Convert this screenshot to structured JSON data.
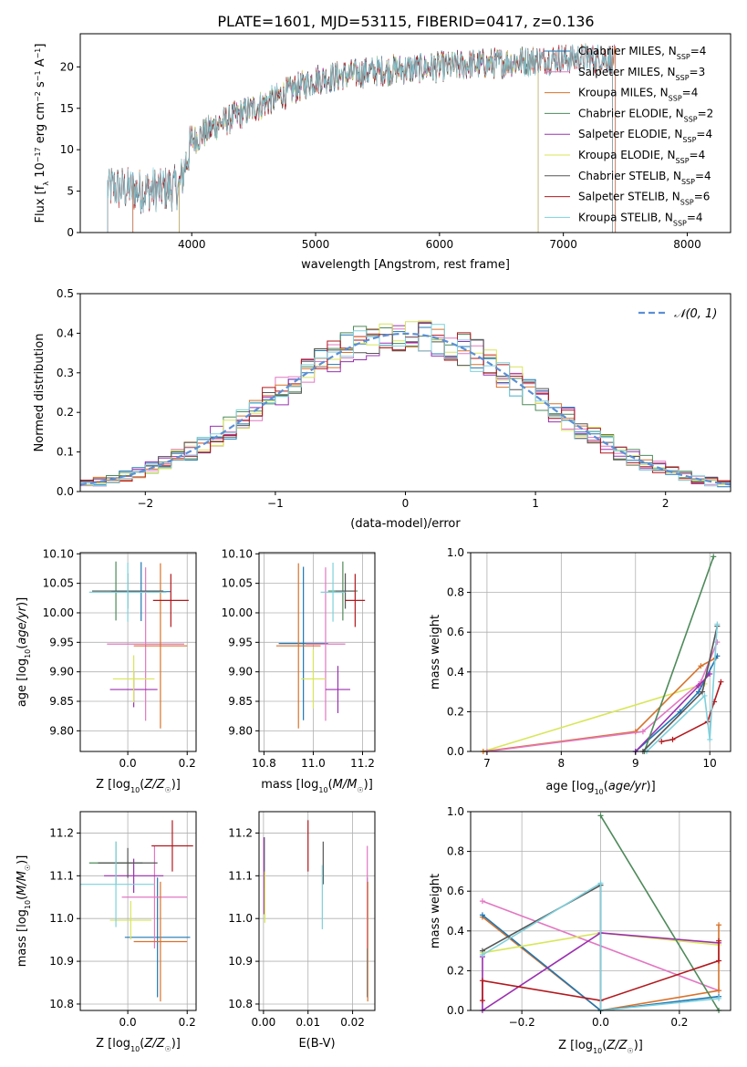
{
  "title": "PLATE=1601, MJD=53115, FIBERID=0417, z=0.136",
  "colors": {
    "Chabrier MILES": "#1f77b4",
    "Salpeter MILES": "#e377c2",
    "Kroupa MILES": "#d9722a",
    "Chabrier ELODIE": "#4d8a5a",
    "Salpeter ELODIE": "#9b30b0",
    "Kroupa ELODIE": "#d8e65a",
    "Chabrier STELIB": "#555555",
    "Salpeter STELIB": "#b2191e",
    "Kroupa STELIB": "#7fd0dc",
    "gauss": "#5b8fd6",
    "grid": "#b0b0b0"
  },
  "chart_data": [
    {
      "id": "spectrum",
      "type": "line",
      "xlabel": "wavelength [Angstrom, rest frame]",
      "ylabel": "Flux [f_λ 10^-17 erg cm^-2 s^-1 A^-1]",
      "xlim": [
        3100,
        8350
      ],
      "ylim": [
        0,
        24
      ],
      "xticks": [
        4000,
        5000,
        6000,
        7000,
        8000
      ],
      "yticks": [
        0,
        5,
        10,
        15,
        20
      ],
      "legend_position": "top-right",
      "legend": [
        {
          "model": "Chabrier MILES",
          "nssp": "4"
        },
        {
          "model": "Salpeter MILES",
          "nssp": "3"
        },
        {
          "model": "Kroupa MILES",
          "nssp": "4"
        },
        {
          "model": "Chabrier ELODIE",
          "nssp": "2"
        },
        {
          "model": "Salpeter ELODIE",
          "nssp": "4"
        },
        {
          "model": "Kroupa ELODIE",
          "nssp": "4"
        },
        {
          "model": "Chabrier STELIB",
          "nssp": "4"
        },
        {
          "model": "Salpeter STELIB",
          "nssp": "6"
        },
        {
          "model": "Kroupa STELIB",
          "nssp": "4"
        }
      ],
      "continuum": [
        [
          3320,
          5.5
        ],
        [
          3600,
          5
        ],
        [
          3900,
          5.5
        ],
        [
          4000,
          11
        ],
        [
          4200,
          13
        ],
        [
          4500,
          15
        ],
        [
          5000,
          18.5
        ],
        [
          5500,
          19.5
        ],
        [
          6000,
          20
        ],
        [
          6500,
          20.5
        ],
        [
          7000,
          21
        ],
        [
          7400,
          21
        ]
      ],
      "model_ranges": [
        {
          "model": "Chabrier MILES",
          "x": [
            3525,
            7420
          ]
        },
        {
          "model": "Salpeter MILES",
          "x": [
            3525,
            7420
          ]
        },
        {
          "model": "Kroupa MILES",
          "x": [
            3525,
            7420
          ]
        },
        {
          "model": "Chabrier ELODIE",
          "x": [
            3895,
            6800
          ]
        },
        {
          "model": "Salpeter ELODIE",
          "x": [
            3895,
            6800
          ]
        },
        {
          "model": "Kroupa ELODIE",
          "x": [
            3895,
            6800
          ]
        },
        {
          "model": "Chabrier STELIB",
          "x": [
            3320,
            7400
          ]
        },
        {
          "model": "Salpeter STELIB",
          "x": [
            3320,
            7400
          ]
        },
        {
          "model": "Kroupa STELIB",
          "x": [
            3320,
            7400
          ]
        }
      ]
    },
    {
      "id": "residuals",
      "type": "line",
      "xlabel": "(data-model)/error",
      "ylabel": "Normed distribution",
      "xlim": [
        -2.5,
        2.5
      ],
      "ylim": [
        0,
        0.5
      ],
      "xticks": [
        -2,
        -1,
        0,
        1,
        2
      ],
      "yticks": [
        0.0,
        0.1,
        0.2,
        0.3,
        0.4,
        0.5
      ],
      "legend_position": "top-right",
      "legend_label": "𝒩(0, 1)",
      "bin_width": 0.1,
      "bin_start": -2.5,
      "gaussian": {
        "mean": 0,
        "sigma": 1
      }
    },
    {
      "id": "age-vs-Z",
      "type": "scatter",
      "xlabel": "Z [log10(Z/Z☉)]",
      "ylabel": "age  [log10(age/yr)]",
      "xlim": [
        -0.16,
        0.23
      ],
      "ylim": [
        9.765,
        10.102
      ],
      "xticks": [
        0.0,
        0.2
      ],
      "yticks": [
        9.8,
        9.85,
        9.9,
        9.95,
        10.0,
        10.05,
        10.1
      ],
      "grid": true,
      "points": [
        {
          "model": "Chabrier MILES",
          "x": 0.045,
          "xerr": 0.1,
          "y": 10.036,
          "yerr": 0.05
        },
        {
          "model": "Salpeter MILES",
          "x": 0.06,
          "xerr": 0.13,
          "y": 9.947,
          "yerr": 0.13
        },
        {
          "model": "Kroupa MILES",
          "x": 0.11,
          "xerr": 0.09,
          "y": 9.944,
          "yerr": 0.14
        },
        {
          "model": "Chabrier ELODIE",
          "x": -0.04,
          "xerr": 0.08,
          "y": 10.037,
          "yerr": 0.05
        },
        {
          "model": "Salpeter ELODIE",
          "x": 0.02,
          "xerr": 0.08,
          "y": 9.87,
          "yerr": 0.03
        },
        {
          "model": "Kroupa ELODIE",
          "x": 0.02,
          "xerr": 0.07,
          "y": 9.888,
          "yerr": 0.04
        },
        {
          "model": "Chabrier STELIB",
          "x": 0.0,
          "xerr": 0.12,
          "y": 10.037,
          "yerr": 0.03
        },
        {
          "model": "Salpeter STELIB",
          "x": 0.145,
          "xerr": 0.06,
          "y": 10.021,
          "yerr": 0.045
        },
        {
          "model": "Kroupa STELIB",
          "x": 0.0,
          "xerr": 0.13,
          "y": 10.035,
          "yerr": 0.05
        }
      ]
    },
    {
      "id": "age-vs-mass",
      "type": "scatter",
      "xlabel": "mass [log10(M/M☉)]",
      "ylabel": "",
      "xlim": [
        10.78,
        11.25
      ],
      "ylim": [
        9.765,
        10.102
      ],
      "xticks": [
        10.8,
        11.0,
        11.2
      ],
      "yticks": [
        9.8,
        9.85,
        9.9,
        9.95,
        10.0,
        10.05,
        10.1
      ],
      "grid": true,
      "points": [
        {
          "model": "Chabrier MILES",
          "x": 10.96,
          "xerr": 0.1,
          "y": 9.948,
          "yerr": 0.13
        },
        {
          "model": "Salpeter MILES",
          "x": 11.05,
          "xerr": 0.08,
          "y": 9.947,
          "yerr": 0.13
        },
        {
          "model": "Kroupa MILES",
          "x": 10.94,
          "xerr": 0.09,
          "y": 9.944,
          "yerr": 0.14
        },
        {
          "model": "Chabrier ELODIE",
          "x": 11.12,
          "xerr": 0.06,
          "y": 10.037,
          "yerr": 0.05
        },
        {
          "model": "Salpeter ELODIE",
          "x": 11.1,
          "xerr": 0.05,
          "y": 9.87,
          "yerr": 0.04
        },
        {
          "model": "Kroupa ELODIE",
          "x": 11.0,
          "xerr": 0.05,
          "y": 9.888,
          "yerr": 0.05
        },
        {
          "model": "Chabrier STELIB",
          "x": 11.13,
          "xerr": 0.04,
          "y": 10.037,
          "yerr": 0.03
        },
        {
          "model": "Salpeter STELIB",
          "x": 11.17,
          "xerr": 0.04,
          "y": 10.021,
          "yerr": 0.045
        },
        {
          "model": "Kroupa STELIB",
          "x": 11.08,
          "xerr": 0.05,
          "y": 10.035,
          "yerr": 0.05
        }
      ]
    },
    {
      "id": "weight-vs-age",
      "type": "line",
      "xlabel": "age  [log10(age/yr)]",
      "ylabel": "mass weight",
      "xlim": [
        6.78,
        10.28
      ],
      "ylim": [
        0,
        1.0
      ],
      "xticks": [
        7,
        8,
        9,
        10
      ],
      "yticks": [
        0.0,
        0.2,
        0.4,
        0.6,
        0.8,
        1.0
      ],
      "grid": true,
      "series": [
        {
          "model": "Kroupa ELODIE",
          "x": [
            6.95,
            9.93
          ],
          "y": [
            0.0,
            0.34
          ]
        },
        {
          "model": "Kroupa MILES",
          "x": [
            6.95,
            9.0,
            9.88,
            10.08
          ],
          "y": [
            0.0,
            0.1,
            0.43,
            0.47
          ]
        },
        {
          "model": "Salpeter MILES",
          "x": [
            7.0,
            9.1,
            9.88,
            10.1
          ],
          "y": [
            0.0,
            0.1,
            0.35,
            0.55
          ]
        },
        {
          "model": "Chabrier MILES",
          "x": [
            9.0,
            9.6,
            9.85,
            10.1
          ],
          "y": [
            0.0,
            0.2,
            0.3,
            0.48
          ]
        },
        {
          "model": "Salpeter ELODIE",
          "x": [
            9.0,
            9.85,
            10.0
          ],
          "y": [
            0.0,
            0.33,
            0.39
          ]
        },
        {
          "model": "Chabrier ELODIE",
          "x": [
            9.12,
            10.05
          ],
          "y": [
            0.0,
            0.98
          ]
        },
        {
          "model": "Chabrier STELIB",
          "x": [
            9.1,
            9.9,
            10.1
          ],
          "y": [
            0.0,
            0.3,
            0.63
          ]
        },
        {
          "model": "Salpeter STELIB",
          "x": [
            9.35,
            9.5,
            9.97,
            10.06,
            10.15
          ],
          "y": [
            0.05,
            0.06,
            0.15,
            0.25,
            0.35
          ]
        },
        {
          "model": "Kroupa STELIB",
          "x": [
            9.15,
            9.93,
            10.0,
            10.1
          ],
          "y": [
            0.0,
            0.28,
            0.06,
            0.64
          ]
        }
      ]
    },
    {
      "id": "mass-vs-Z",
      "type": "scatter",
      "xlabel": "Z [log10(Z/Z☉)]",
      "ylabel": "mass [log10(M/M☉)]",
      "xlim": [
        -0.16,
        0.23
      ],
      "ylim": [
        10.785,
        11.25
      ],
      "xticks": [
        0.0,
        0.2
      ],
      "yticks": [
        10.8,
        10.9,
        11.0,
        11.1,
        11.2
      ],
      "grid": true,
      "points": [
        {
          "model": "Chabrier MILES",
          "x": 0.1,
          "xerr": 0.11,
          "y": 10.956,
          "yerr": 0.14
        },
        {
          "model": "Salpeter MILES",
          "x": 0.09,
          "xerr": 0.11,
          "y": 11.05,
          "yerr": 0.12
        },
        {
          "model": "Kroupa MILES",
          "x": 0.11,
          "xerr": 0.09,
          "y": 10.946,
          "yerr": 0.14
        },
        {
          "model": "Chabrier ELODIE",
          "x": -0.04,
          "xerr": 0.09,
          "y": 11.13,
          "yerr": 0.05
        },
        {
          "model": "Salpeter ELODIE",
          "x": 0.02,
          "xerr": 0.1,
          "y": 11.1,
          "yerr": 0.04
        },
        {
          "model": "Kroupa ELODIE",
          "x": 0.01,
          "xerr": 0.07,
          "y": 10.996,
          "yerr": 0.045
        },
        {
          "model": "Chabrier STELIB",
          "x": 0.0,
          "xerr": 0.1,
          "y": 11.13,
          "yerr": 0.035
        },
        {
          "model": "Salpeter STELIB",
          "x": 0.15,
          "xerr": 0.07,
          "y": 11.17,
          "yerr": 0.06
        },
        {
          "model": "Kroupa STELIB",
          "x": -0.04,
          "xerr": 0.13,
          "y": 11.08,
          "yerr": 0.1
        }
      ]
    },
    {
      "id": "mass-vs-ebv",
      "type": "scatter",
      "xlabel": "E(B-V)",
      "ylabel": "",
      "xlim": [
        -0.001,
        0.025
      ],
      "ylim": [
        10.785,
        11.25
      ],
      "xticks": [
        0.0,
        0.01,
        0.02
      ],
      "yticks": [
        10.8,
        10.9,
        11.0,
        11.1,
        11.2
      ],
      "grid": true,
      "points": [
        {
          "model": "Chabrier MILES",
          "x": 0.0233,
          "xerr": 0,
          "y": 10.956,
          "yerr": 0.14
        },
        {
          "model": "Salpeter MILES",
          "x": 0.0233,
          "xerr": 0,
          "y": 11.05,
          "yerr": 0.12
        },
        {
          "model": "Kroupa MILES",
          "x": 0.0234,
          "xerr": 0,
          "y": 10.946,
          "yerr": 0.14
        },
        {
          "model": "Chabrier ELODIE",
          "x": 0.0002,
          "xerr": 0,
          "y": 11.13,
          "yerr": 0.06
        },
        {
          "model": "Salpeter ELODIE",
          "x": 0.0001,
          "xerr": 0,
          "y": 11.1,
          "yerr": 0.09
        },
        {
          "model": "Kroupa ELODIE",
          "x": 0.0003,
          "xerr": 0,
          "y": 11.05,
          "yerr": 0.06
        },
        {
          "model": "Chabrier STELIB",
          "x": 0.0134,
          "xerr": 0,
          "y": 11.13,
          "yerr": 0.05
        },
        {
          "model": "Salpeter STELIB",
          "x": 0.01,
          "xerr": 0,
          "y": 11.17,
          "yerr": 0.06
        },
        {
          "model": "Kroupa STELIB",
          "x": 0.0132,
          "xerr": 0,
          "y": 11.05,
          "yerr": 0.075
        }
      ]
    },
    {
      "id": "weight-vs-Z",
      "type": "line",
      "xlabel": "Z [log10(Z/Z☉)]",
      "ylabel": "mass weight",
      "xlim": [
        -0.33,
        0.33
      ],
      "ylim": [
        0,
        1.0
      ],
      "xticks": [
        -0.2,
        0.0,
        0.2
      ],
      "yticks": [
        0.0,
        0.2,
        0.4,
        0.6,
        0.8,
        1.0
      ],
      "grid": true,
      "series": [
        {
          "model": "Salpeter MILES",
          "x": [
            -0.3,
            0.3
          ],
          "y": [
            0.55,
            0.1
          ]
        },
        {
          "model": "Kroupa MILES",
          "x": [
            -0.3,
            0.0,
            0.3,
            0.3
          ],
          "y": [
            0.47,
            0.0,
            0.1,
            0.43
          ]
        },
        {
          "model": "Chabrier MILES",
          "x": [
            -0.3,
            0.0,
            0.3
          ],
          "y": [
            0.48,
            0.0,
            0.07
          ]
        },
        {
          "model": "Kroupa ELODIE",
          "x": [
            -0.3,
            0.0,
            0.3
          ],
          "y": [
            0.29,
            0.39,
            0.33
          ]
        },
        {
          "model": "Salpeter ELODIE",
          "x": [
            -0.3,
            -0.3,
            0.0,
            0.3
          ],
          "y": [
            0.27,
            0.0,
            0.39,
            0.34
          ]
        },
        {
          "model": "Chabrier ELODIE",
          "x": [
            0.0,
            0.3
          ],
          "y": [
            0.98,
            0.0
          ]
        },
        {
          "model": "Chabrier STELIB",
          "x": [
            -0.3,
            0.0,
            0.0
          ],
          "y": [
            0.3,
            0.63,
            0.0
          ]
        },
        {
          "model": "Salpeter STELIB",
          "x": [
            -0.3,
            -0.3,
            0.0,
            0.3,
            0.3
          ],
          "y": [
            0.05,
            0.15,
            0.05,
            0.25,
            0.35
          ]
        },
        {
          "model": "Kroupa STELIB",
          "x": [
            -0.3,
            0.0,
            0.0,
            0.3
          ],
          "y": [
            0.28,
            0.64,
            0.0,
            0.06
          ]
        }
      ]
    }
  ]
}
